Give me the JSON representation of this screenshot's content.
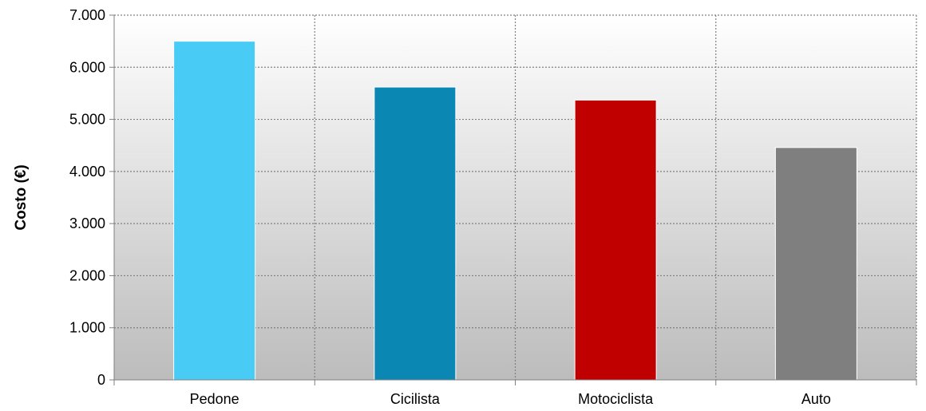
{
  "chart_data": {
    "type": "bar",
    "categories": [
      "Pedone",
      "Cicilista",
      "Motociclista",
      "Auto"
    ],
    "values": [
      6500,
      5620,
      5370,
      4460
    ],
    "colors": [
      "#48cbf5",
      "#0a87b3",
      "#c00000",
      "#7f7f7f"
    ],
    "ylabel": "Costo (€)",
    "ylim": [
      0,
      7000
    ],
    "yticks": [
      0,
      1000,
      2000,
      3000,
      4000,
      5000,
      6000,
      7000
    ],
    "ytick_labels": [
      "0",
      "1.000",
      "2.000",
      "3.000",
      "4.000",
      "5.000",
      "6.000",
      "7.000"
    ],
    "grid": true,
    "grid_style": "dotted",
    "background": "gradient white-to-gray"
  }
}
